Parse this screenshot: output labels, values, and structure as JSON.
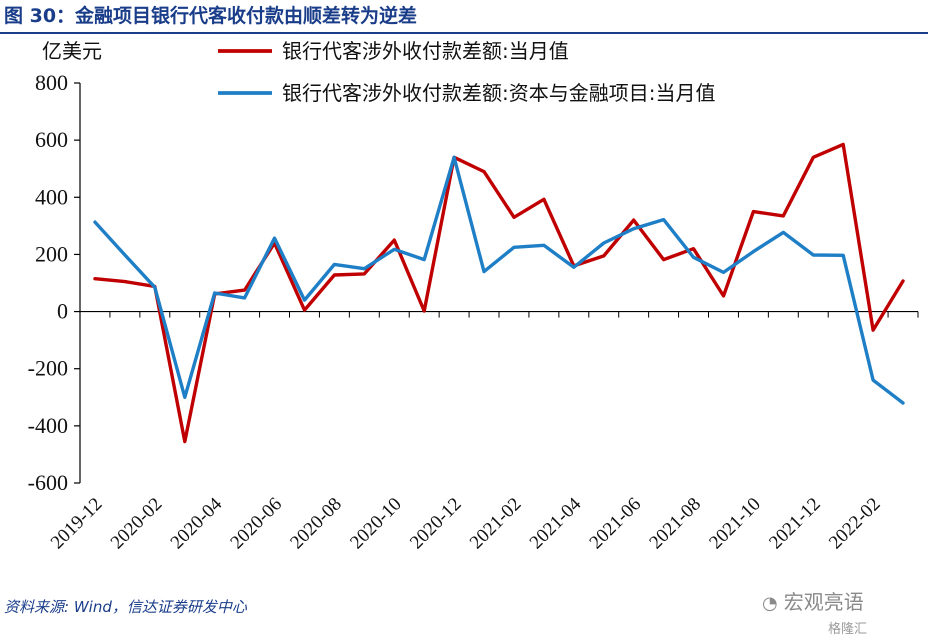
{
  "header": {
    "title": "图 30：金融项目银行代客收付款由顺差转为逆差"
  },
  "footer": {
    "source": "资料来源: Wind，信达证券研发中心",
    "watermark_primary": "宏观亮语",
    "watermark_secondary": "格隆汇"
  },
  "icons": {
    "watermark_icon": "wechat-icon"
  },
  "chart_data": {
    "type": "line",
    "unit_label": "亿美元",
    "ylim": [
      -600,
      800
    ],
    "yticks": [
      -600,
      -400,
      -200,
      0,
      200,
      400,
      600,
      800
    ],
    "ytick_labels": [
      "-600",
      "-400",
      "-200",
      "0",
      "200",
      "400",
      "600",
      "800"
    ],
    "x": [
      "2019-12",
      "2020-01",
      "2020-02",
      "2020-03",
      "2020-04",
      "2020-05",
      "2020-06",
      "2020-07",
      "2020-08",
      "2020-09",
      "2020-10",
      "2020-11",
      "2020-12",
      "2021-01",
      "2021-02",
      "2021-03",
      "2021-04",
      "2021-05",
      "2021-06",
      "2021-07",
      "2021-08",
      "2021-09",
      "2021-10",
      "2021-11",
      "2021-12",
      "2022-01",
      "2022-02",
      "2022-03"
    ],
    "xtick_labels": [
      "2019-12",
      "2020-02",
      "2020-04",
      "2020-06",
      "2020-08",
      "2020-10",
      "2020-12",
      "2021-02",
      "2021-04",
      "2021-06",
      "2021-08",
      "2021-10",
      "2021-12",
      "2022-02"
    ],
    "legend_position": "top",
    "grid": false,
    "series": [
      {
        "name": "银行代客涉外收付款差额:当月值",
        "color": "#c00000",
        "values": [
          115,
          105,
          88,
          -455,
          62,
          75,
          240,
          5,
          128,
          132,
          250,
          2,
          540,
          490,
          330,
          393,
          160,
          195,
          320,
          182,
          220,
          55,
          350,
          335,
          540,
          585,
          -65,
          107
        ]
      },
      {
        "name": "银行代客涉外收付款差额:资本与金融项目:当月值",
        "color": "#1f7fc6",
        "values": [
          313,
          198,
          85,
          -300,
          65,
          48,
          257,
          40,
          165,
          150,
          218,
          182,
          540,
          140,
          225,
          232,
          155,
          240,
          290,
          322,
          190,
          137,
          210,
          277,
          198,
          197,
          -240,
          -320
        ]
      }
    ]
  }
}
